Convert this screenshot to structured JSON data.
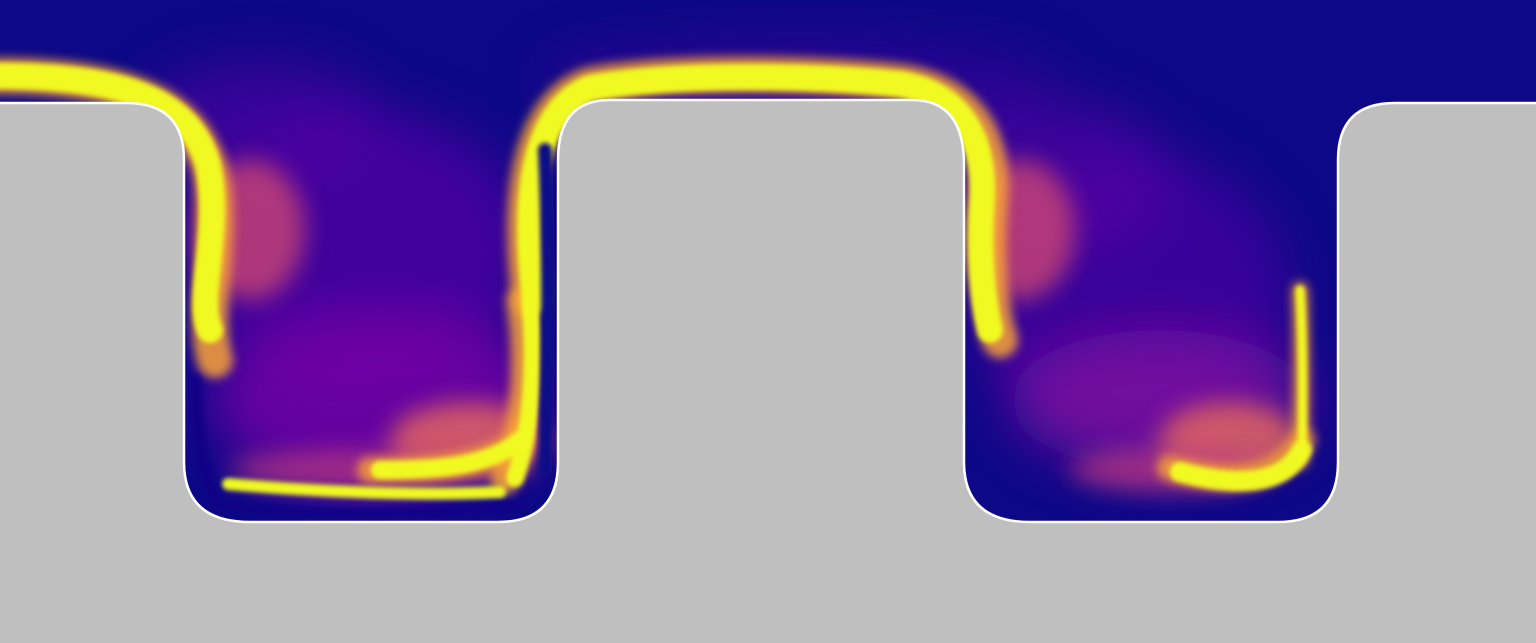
{
  "image": {
    "subject": "flow-field-over-cavities",
    "colormap": "plasma",
    "colors": {
      "background_fluid": "#0d0887",
      "solid_wall": "#bfbfbf",
      "wall_edge": "#ffffff",
      "low": "#0d0887",
      "mid_low": "#6a00a8",
      "mid": "#b12a90",
      "mid_high": "#e16462",
      "high_orange": "#fca636",
      "peak": "#f0f921"
    },
    "cavity_count": 2
  }
}
